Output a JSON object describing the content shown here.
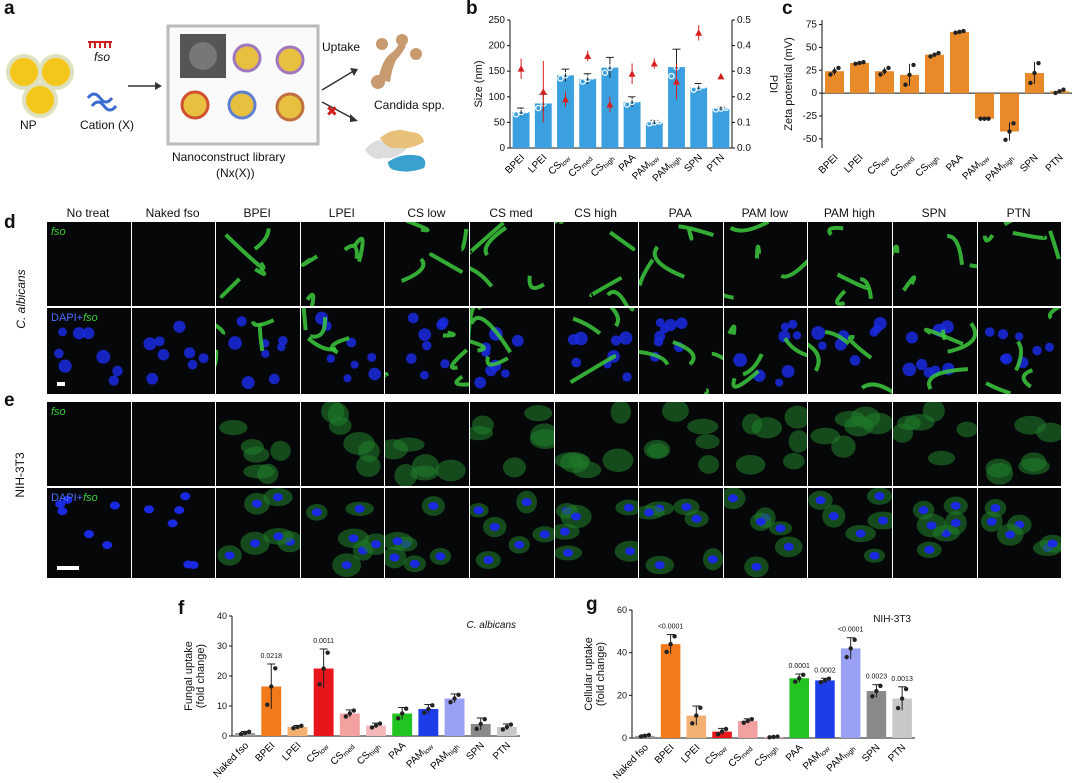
{
  "panel_labels": {
    "a": "a",
    "b": "b",
    "c": "c",
    "d": "d",
    "e": "e",
    "f": "f",
    "g": "g"
  },
  "schematic": {
    "np_label": "NP",
    "fso_label": "fso",
    "cation_label": "Cation (X)",
    "uptake_label": "Uptake",
    "candida_label": "Candida spp.",
    "library_label": "Nanoconstruct library",
    "library_sub": "(Nx(X))"
  },
  "micrograph_columns": [
    "No treat",
    "Naked fso",
    "BPEI",
    "LPEI",
    "CS low",
    "CS med",
    "CS high",
    "PAA",
    "PAM low",
    "PAM high",
    "SPN",
    "PTN"
  ],
  "row_labels": {
    "d": "C. albicans",
    "e": "NIH-3T3"
  },
  "channel_labels": {
    "fso": "fso",
    "dapi_prefix": "DAPI+",
    "dapi_fso": "fso"
  },
  "chart_data": [
    {
      "id": "b",
      "type": "bar",
      "title": "",
      "categories": [
        "BPEI",
        "LPEI",
        "CSlow",
        "CSmed",
        "CShigh",
        "PAA",
        "PAMlow",
        "PAMhigh",
        "SPN",
        "PTN"
      ],
      "category_labels": [
        [
          "BPEI",
          ""
        ],
        [
          "LPEI",
          ""
        ],
        [
          "CS",
          "low"
        ],
        [
          "CS",
          "med"
        ],
        [
          "CS",
          "high"
        ],
        [
          "PAA",
          ""
        ],
        [
          "PAM",
          "low"
        ],
        [
          "PAM",
          "high"
        ],
        [
          "SPN",
          ""
        ],
        [
          "PTN",
          ""
        ]
      ],
      "series": [
        {
          "name": "Size",
          "axis": "left",
          "values": [
            70,
            87,
            142,
            135,
            157,
            90,
            50,
            158,
            118,
            77
          ],
          "errors": [
            8,
            18,
            12,
            10,
            20,
            10,
            4,
            35,
            8,
            3
          ]
        },
        {
          "name": "PDI",
          "axis": "right",
          "values": [
            0.31,
            0.22,
            0.19,
            0.36,
            0.17,
            0.29,
            0.33,
            0.26,
            0.45,
            0.28
          ],
          "errors": [
            0.04,
            0.12,
            0.03,
            0.02,
            0.03,
            0.04,
            0.02,
            0.07,
            0.03,
            0.01
          ]
        }
      ],
      "ylabel": "Size  (nm)",
      "y2label": "PDI",
      "ylim": [
        0,
        250
      ],
      "y2lim": [
        0,
        0.5
      ],
      "yticks": [
        "0",
        "50",
        "100",
        "150",
        "200",
        "250"
      ],
      "y2ticks": [
        "0.0",
        "0.1",
        "0.2",
        "0.3",
        "0.4",
        "0.5"
      ]
    },
    {
      "id": "c",
      "type": "bar",
      "categories": [
        "BPEI",
        "LPEI",
        "CSlow",
        "CSmed",
        "CShigh",
        "PAA",
        "PAMlow",
        "PAMhigh",
        "SPN",
        "PTN"
      ],
      "category_labels": [
        [
          "BPEI",
          ""
        ],
        [
          "LPEI",
          ""
        ],
        [
          "CS",
          "low"
        ],
        [
          "CS",
          "med"
        ],
        [
          "CS",
          "high"
        ],
        [
          "PAA",
          ""
        ],
        [
          "PAM",
          "low"
        ],
        [
          "PAM",
          "high"
        ],
        [
          "SPN",
          ""
        ],
        [
          "PTN",
          ""
        ]
      ],
      "values": [
        24,
        33,
        24,
        20,
        42,
        67,
        -28,
        -42,
        22,
        2
      ],
      "errors": [
        4,
        1,
        4,
        12,
        2,
        1,
        0,
        10,
        12,
        2
      ],
      "ylabel": "Zeta potential (mV)",
      "ylim": [
        -60,
        80
      ],
      "yticks": [
        "-50",
        "-25",
        "0",
        "25",
        "50",
        "75"
      ]
    },
    {
      "id": "f",
      "type": "bar",
      "annotation": "C. albicans",
      "categories": [
        "Naked fso",
        "BPEI",
        "LPEI",
        "CSlow",
        "CSmed",
        "CShigh",
        "PAA",
        "PAMlow",
        "PAMhigh",
        "SPN",
        "PTN"
      ],
      "category_labels": [
        [
          "Naked fso",
          ""
        ],
        [
          "BPEI",
          ""
        ],
        [
          "LPEI",
          ""
        ],
        [
          "CS",
          "low"
        ],
        [
          "CS",
          "med"
        ],
        [
          "CS",
          "high"
        ],
        [
          "PAA",
          ""
        ],
        [
          "PAM",
          "low"
        ],
        [
          "PAM",
          "high"
        ],
        [
          "SPN",
          ""
        ],
        [
          "PTN",
          ""
        ]
      ],
      "values": [
        1,
        16.5,
        3,
        22.5,
        7.5,
        3.5,
        7.5,
        9,
        12.5,
        4,
        3
      ],
      "errors": [
        0.5,
        7.5,
        0.5,
        6.5,
        1.2,
        0.8,
        2,
        1.5,
        1.5,
        2,
        1
      ],
      "pvalues": [
        "",
        "0.0218",
        "",
        "0.0011",
        "",
        "",
        "",
        "",
        "",
        "",
        ""
      ],
      "ylabel": "Fungal uptake (fold change)",
      "ylim": [
        0,
        40
      ],
      "yticks": [
        "0",
        "10",
        "20",
        "30",
        "40"
      ]
    },
    {
      "id": "g",
      "type": "bar",
      "annotation": "NIH-3T3",
      "categories": [
        "Naked fso",
        "BPEI",
        "LPEI",
        "CSlow",
        "CSmed",
        "CShigh",
        "PAA",
        "PAMlow",
        "PAMhigh",
        "SPN",
        "PTN"
      ],
      "category_labels": [
        [
          "Naked fso",
          ""
        ],
        [
          "BPEI",
          ""
        ],
        [
          "LPEI",
          ""
        ],
        [
          "CS",
          "low"
        ],
        [
          "CS",
          "med"
        ],
        [
          "CS",
          "high"
        ],
        [
          "PAA",
          ""
        ],
        [
          "PAM",
          "low"
        ],
        [
          "PAM",
          "high"
        ],
        [
          "SPN",
          ""
        ],
        [
          "PTN",
          ""
        ]
      ],
      "values": [
        1,
        44,
        10.5,
        3,
        8,
        0.5,
        28,
        27,
        42,
        22,
        18.5
      ],
      "errors": [
        0.5,
        4.5,
        4.5,
        1.5,
        1,
        0.2,
        2,
        1,
        5,
        3,
        5.5
      ],
      "pvalues": [
        "",
        "<0.0001",
        "",
        "",
        "",
        "",
        "0.0001",
        "0.0002",
        "<0.0001",
        "0.0023",
        "0.0013"
      ],
      "ylabel": "Cellular uptake (fold change)",
      "ylim": [
        0,
        60
      ],
      "yticks": [
        "0",
        "20",
        "40",
        "60"
      ]
    }
  ],
  "colors": {
    "blue_bar": "#3aa0e0",
    "orange_bar": "#e88a2a",
    "pdi_marker": "#d62020",
    "fg_bars": [
      "#9a9a9a",
      "#f27a1a",
      "#f2b071",
      "#e8161a",
      "#f2a0a0",
      "#f4b8b8",
      "#22c422",
      "#1e3ce8",
      "#9aa0f4",
      "#8a8a8a",
      "#c8c8c8"
    ]
  }
}
